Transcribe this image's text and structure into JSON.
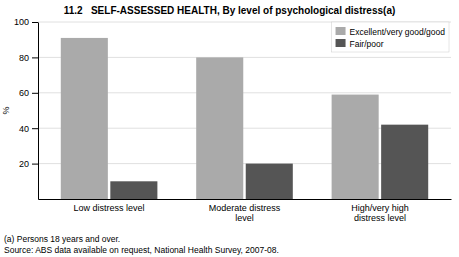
{
  "chart_data": {
    "type": "bar",
    "title": "11.2   SELF-ASSESSED HEALTH, By level of psychological distress(a)",
    "categories": [
      "Low distress level",
      "Moderate distress\nlevel",
      "High/very high\ndistress level"
    ],
    "series": [
      {
        "name": "Excellent/very good/good",
        "color": "#aaaaaa",
        "values": [
          91,
          80,
          59
        ]
      },
      {
        "name": "Fair/poor",
        "color": "#555555",
        "values": [
          10,
          20,
          42
        ]
      }
    ],
    "ylabel": "%",
    "ylim": [
      0,
      100
    ],
    "yticks": [
      20,
      40,
      60,
      80,
      100
    ],
    "grid": true,
    "legend": "upper right",
    "annotations": [
      "(a) Persons 18 years and over.",
      "Source: ABS data available on request, National Health Survey, 2007-08."
    ]
  }
}
